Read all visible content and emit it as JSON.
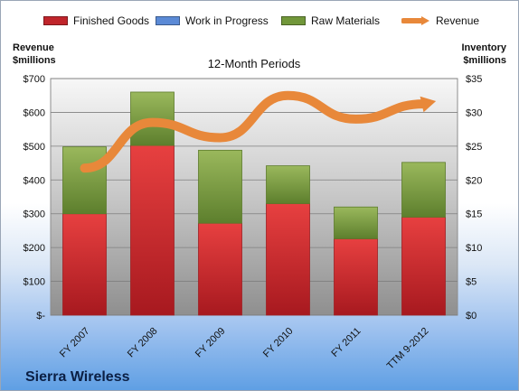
{
  "legend": {
    "finished_goods": "Finished Goods",
    "work_in_progress": "Work in Progress",
    "raw_materials": "Raw Materials",
    "revenue": "Revenue"
  },
  "axis_titles": {
    "left": "Revenue\n$millions",
    "right": "Inventory\n$millions"
  },
  "chart_data": {
    "type": "bar",
    "title": "12-Month Periods",
    "categories": [
      "FY 2007",
      "FY 2008",
      "FY 2009",
      "FY 2010",
      "FY 2011",
      "TTM 9-2012"
    ],
    "left_axis": {
      "label": "Revenue\n$millions",
      "ticks": [
        "$-",
        "$100",
        "$200",
        "$300",
        "$400",
        "$500",
        "$600",
        "$700"
      ],
      "ylim": [
        0,
        700
      ]
    },
    "right_axis": {
      "label": "Inventory\n$millions",
      "ticks": [
        "$0",
        "$5",
        "$10",
        "$15",
        "$20",
        "$25",
        "$30",
        "$35"
      ],
      "ylim": [
        0,
        35
      ]
    },
    "series": [
      {
        "name": "Finished Goods",
        "kind": "bar",
        "axis": "right",
        "values": [
          15.0,
          25.1,
          13.6,
          16.5,
          11.3,
          14.5
        ],
        "color": "#c0252b"
      },
      {
        "name": "Work in Progress",
        "kind": "bar",
        "axis": "right",
        "values": [
          0,
          0,
          0,
          0,
          0,
          0
        ],
        "color": "#5b8ad6"
      },
      {
        "name": "Raw Materials",
        "kind": "bar",
        "axis": "right",
        "values": [
          9.9,
          7.9,
          10.8,
          5.6,
          4.7,
          8.1
        ],
        "color": "#71973a"
      },
      {
        "name": "Revenue",
        "kind": "line",
        "axis": "left",
        "values": [
          435,
          570,
          525,
          650,
          580,
          625
        ],
        "color": "#e8883a"
      }
    ],
    "grid": true
  },
  "company": "Sierra Wireless"
}
